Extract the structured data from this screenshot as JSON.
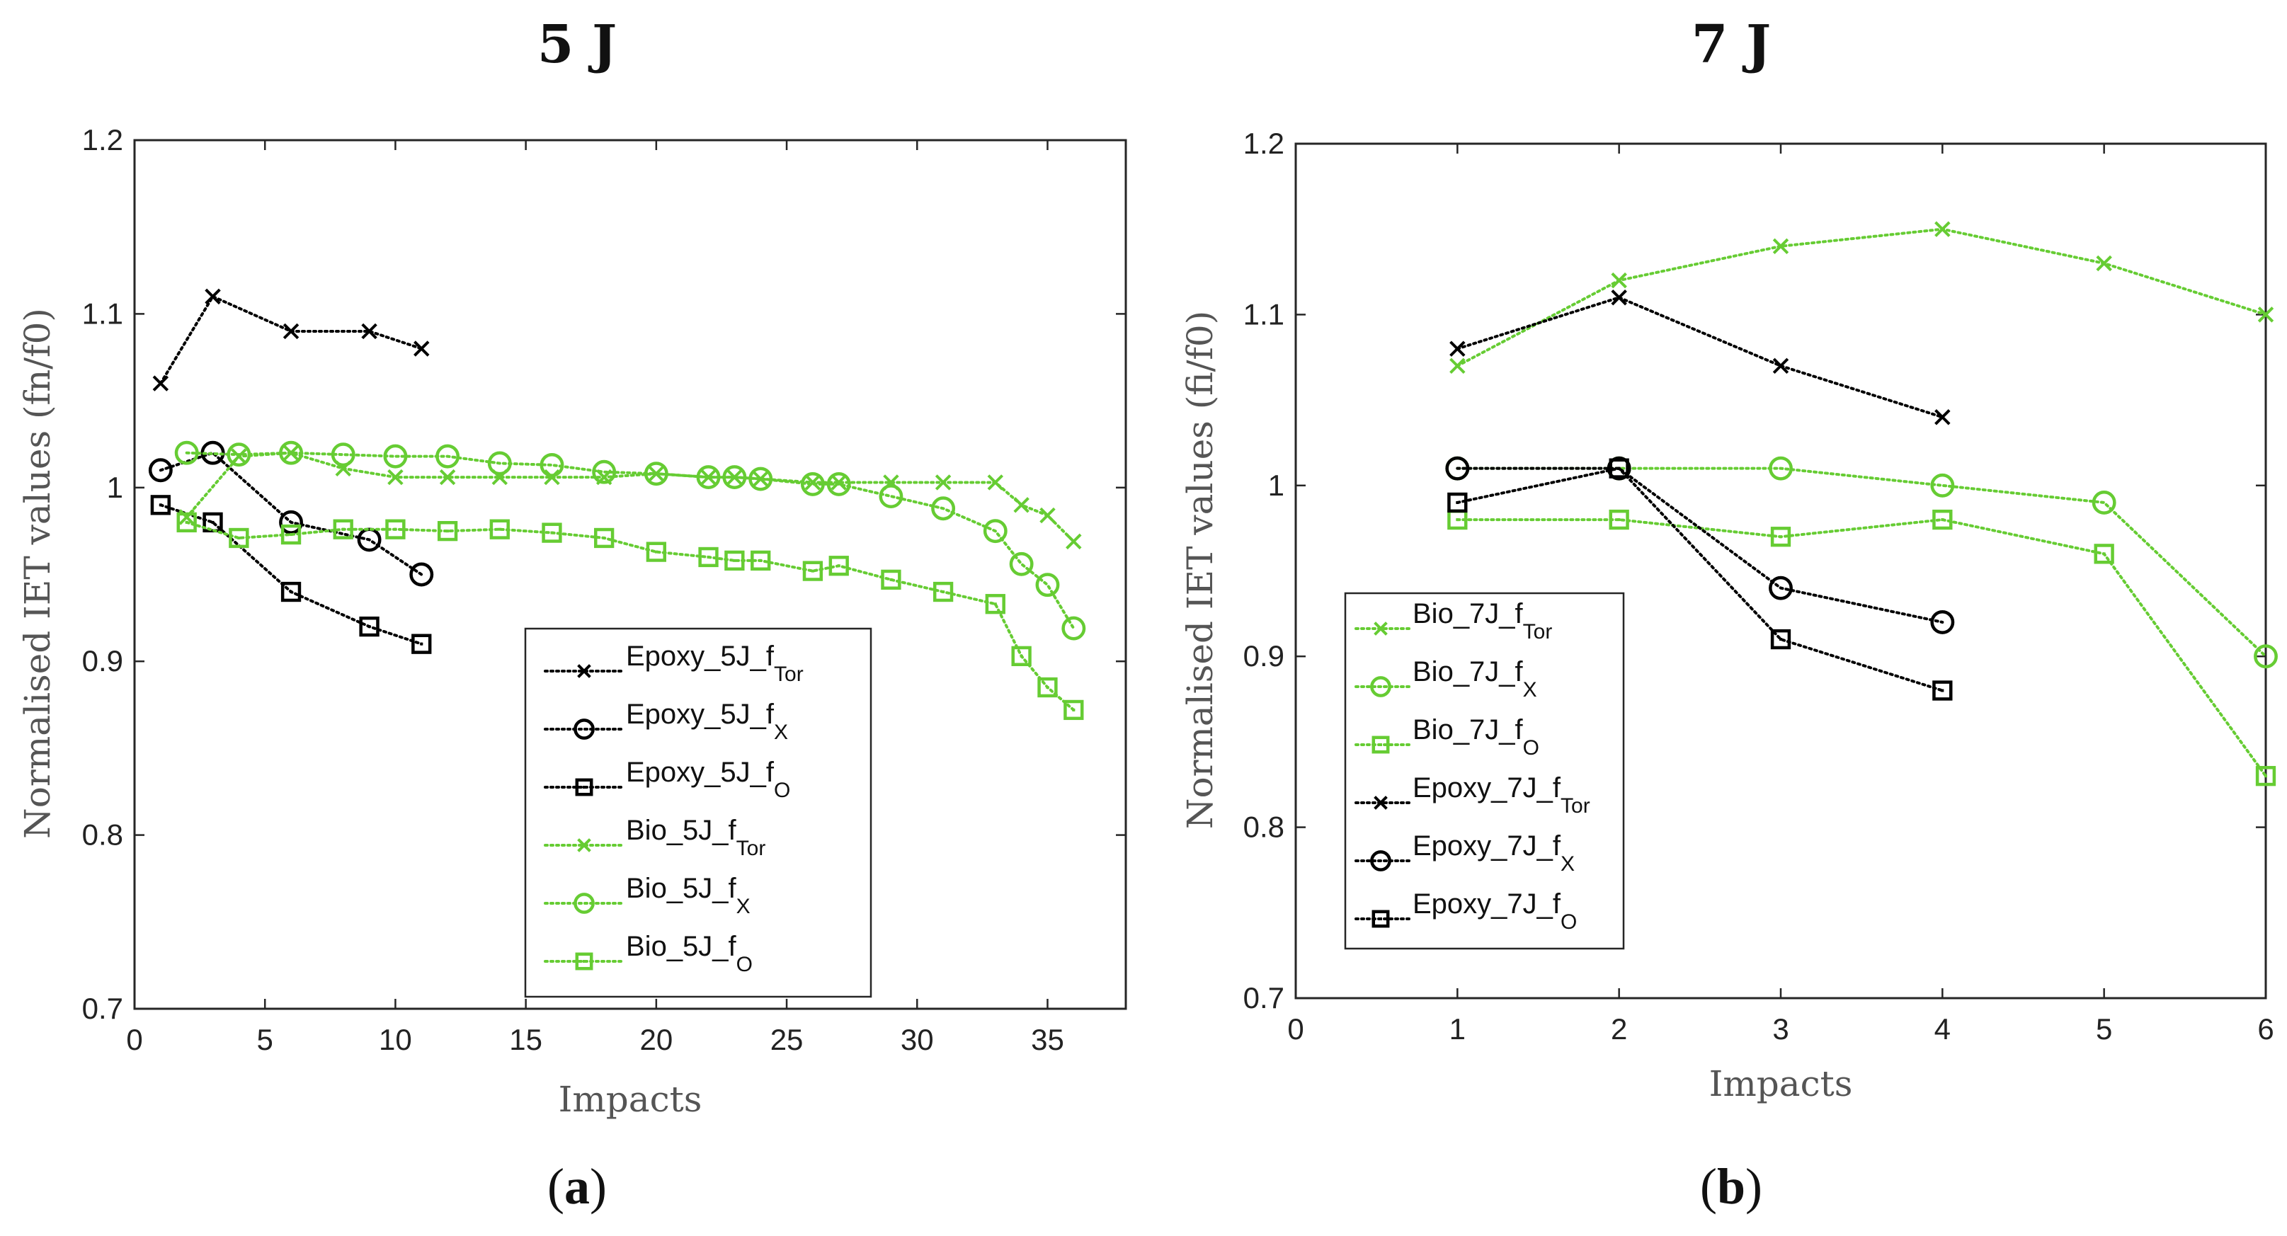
{
  "colors": {
    "green": "#66cc33",
    "black": "#000000"
  },
  "chart_data": [
    {
      "type": "line",
      "panel_label": "a",
      "title": "5 J",
      "xlabel": "Impacts",
      "ylabel": "Normalised IET values (fn/f0)",
      "xlim": [
        0,
        38
      ],
      "ylim": [
        0.7,
        1.2
      ],
      "xticks": [
        0,
        5,
        10,
        15,
        20,
        25,
        30,
        35
      ],
      "yticks": [
        0.7,
        0.8,
        0.9,
        1,
        1.1,
        1.2
      ],
      "ytick_labels": [
        "0.7",
        "0.8",
        "0.9",
        "1",
        "1.1",
        "1.2"
      ],
      "legend_position": "lower-right",
      "series": [
        {
          "name_main": "Epoxy_5J_f",
          "name_sub": "Tor",
          "marker": "x",
          "color": "black",
          "x": [
            1,
            3,
            6,
            9,
            11
          ],
          "y": [
            1.06,
            1.11,
            1.09,
            1.09,
            1.08
          ]
        },
        {
          "name_main": "Epoxy_5J_f",
          "name_sub": "X",
          "marker": "o",
          "color": "black",
          "x": [
            1,
            3,
            6,
            9,
            11
          ],
          "y": [
            1.01,
            1.02,
            0.98,
            0.97,
            0.95
          ]
        },
        {
          "name_main": "Epoxy_5J_f",
          "name_sub": "O",
          "marker": "s",
          "color": "black",
          "x": [
            1,
            3,
            6,
            9,
            11
          ],
          "y": [
            0.99,
            0.98,
            0.94,
            0.92,
            0.91
          ]
        },
        {
          "name_main": "Bio_5J_f",
          "name_sub": "Tor",
          "marker": "x",
          "color": "green",
          "x": [
            2,
            4,
            6,
            8,
            10,
            12,
            14,
            16,
            18,
            20,
            22,
            23,
            24,
            26,
            27,
            29,
            31,
            33,
            34,
            35,
            36
          ],
          "y": [
            0.983,
            1.018,
            1.02,
            1.011,
            1.006,
            1.006,
            1.006,
            1.006,
            1.006,
            1.008,
            1.006,
            1.006,
            1.005,
            1.003,
            1.003,
            1.003,
            1.003,
            1.003,
            0.99,
            0.984,
            0.969
          ]
        },
        {
          "name_main": "Bio_5J_f",
          "name_sub": "X",
          "marker": "o",
          "color": "green",
          "x": [
            2,
            4,
            6,
            8,
            10,
            12,
            14,
            16,
            18,
            20,
            22,
            23,
            24,
            26,
            27,
            29,
            31,
            33,
            34,
            35,
            36
          ],
          "y": [
            1.02,
            1.019,
            1.02,
            1.019,
            1.018,
            1.018,
            1.014,
            1.013,
            1.009,
            1.008,
            1.006,
            1.006,
            1.005,
            1.002,
            1.002,
            0.995,
            0.988,
            0.975,
            0.956,
            0.944,
            0.919
          ]
        },
        {
          "name_main": "Bio_5J_f",
          "name_sub": "O",
          "marker": "s",
          "color": "green",
          "x": [
            2,
            4,
            6,
            8,
            10,
            12,
            14,
            16,
            18,
            20,
            22,
            23,
            24,
            26,
            27,
            29,
            31,
            33,
            34,
            35,
            36
          ],
          "y": [
            0.98,
            0.971,
            0.973,
            0.976,
            0.976,
            0.975,
            0.976,
            0.974,
            0.971,
            0.963,
            0.96,
            0.958,
            0.958,
            0.952,
            0.955,
            0.947,
            0.94,
            0.933,
            0.903,
            0.885,
            0.872
          ]
        }
      ]
    },
    {
      "type": "line",
      "panel_label": "b",
      "title": "7 J",
      "xlabel": "Impacts",
      "ylabel": "Normalised IET values (fi/f0)",
      "xlim": [
        0,
        6
      ],
      "ylim": [
        0.7,
        1.2
      ],
      "xticks": [
        0,
        1,
        2,
        3,
        4,
        5,
        6
      ],
      "yticks": [
        0.7,
        0.8,
        0.9,
        1,
        1.1,
        1.2
      ],
      "ytick_labels": [
        "0.7",
        "0.8",
        "0.9",
        "1",
        "1.1",
        "1.2"
      ],
      "legend_position": "lower-left",
      "series": [
        {
          "name_main": "Bio_7J_f",
          "name_sub": "Tor",
          "marker": "x",
          "color": "green",
          "x": [
            1,
            2,
            3,
            4,
            5,
            6
          ],
          "y": [
            1.07,
            1.12,
            1.14,
            1.15,
            1.13,
            1.1
          ]
        },
        {
          "name_main": "Bio_7J_f",
          "name_sub": "X",
          "marker": "o",
          "color": "green",
          "x": [
            1,
            2,
            3,
            4,
            5,
            6
          ],
          "y": [
            1.01,
            1.01,
            1.01,
            1.0,
            0.99,
            0.9
          ]
        },
        {
          "name_main": "Bio_7J_f",
          "name_sub": "O",
          "marker": "s",
          "color": "green",
          "x": [
            1,
            2,
            3,
            4,
            5,
            6
          ],
          "y": [
            0.98,
            0.98,
            0.97,
            0.98,
            0.96,
            0.83
          ]
        },
        {
          "name_main": "Epoxy_7J_f",
          "name_sub": "Tor",
          "marker": "x",
          "color": "black",
          "x": [
            1,
            2,
            3,
            4
          ],
          "y": [
            1.08,
            1.11,
            1.07,
            1.04
          ]
        },
        {
          "name_main": "Epoxy_7J_f",
          "name_sub": "X",
          "marker": "o",
          "color": "black",
          "x": [
            1,
            2,
            3,
            4
          ],
          "y": [
            1.01,
            1.01,
            0.94,
            0.92
          ]
        },
        {
          "name_main": "Epoxy_7J_f",
          "name_sub": "O",
          "marker": "s",
          "color": "black",
          "x": [
            1,
            2,
            3,
            4
          ],
          "y": [
            0.99,
            1.01,
            0.91,
            0.88
          ]
        }
      ]
    }
  ]
}
